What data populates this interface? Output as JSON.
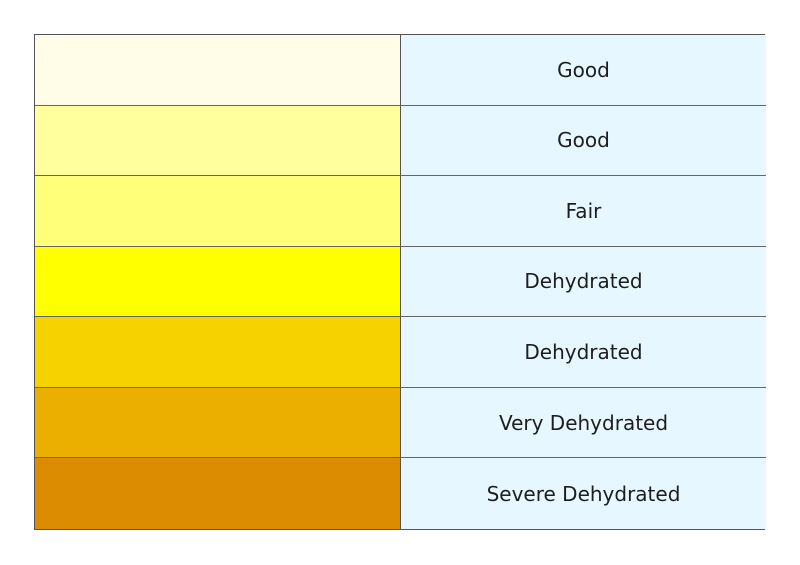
{
  "rows": [
    {
      "color": "#fffde8",
      "label": "Good"
    },
    {
      "color": "#ffff9e",
      "label": "Good"
    },
    {
      "color": "#ffff79",
      "label": "Fair"
    },
    {
      "color": "#ffff00",
      "label": "Dehydrated"
    },
    {
      "color": "#f6d300",
      "label": "Dehydrated"
    },
    {
      "color": "#ebaf00",
      "label": "Very Dehydrated"
    },
    {
      "color": "#db8c00",
      "label": "Severe Dehydrated"
    }
  ],
  "label_background": "#e6f7ff"
}
